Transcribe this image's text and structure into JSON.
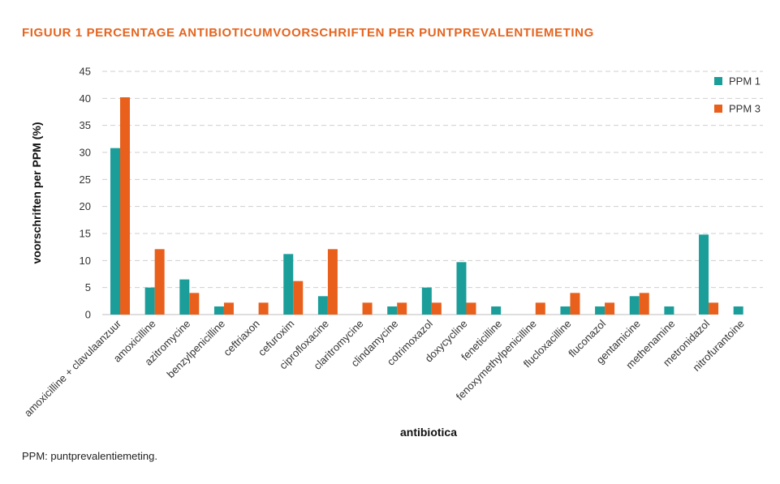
{
  "title": "FIGUUR 1  PERCENTAGE ANTIBIOTICUMVOORSCHRIFTEN PER PUNTPREVALENTIEMETING",
  "footnote": "PPM: puntprevalentiemeting.",
  "colors": {
    "title": "#e5641e",
    "ppm1": "#1b9e9a",
    "ppm3": "#e8601c",
    "grid": "#cfcfcf"
  },
  "chart_data": {
    "type": "bar",
    "xlabel": "antibiotica",
    "ylabel": "voorschriften per PPM (%)",
    "ylim": [
      0,
      45
    ],
    "yticks": [
      0,
      5,
      10,
      15,
      20,
      25,
      30,
      35,
      40,
      45
    ],
    "grid": true,
    "legend_position": "top-right",
    "categories": [
      "amoxicilline + clavulaanzuur",
      "amoxicilline",
      "azitromycine",
      "benzylpenicilline",
      "ceftriaxon",
      "cefuroxim",
      "ciprofloxacine",
      "claritromycine",
      "clindamycine",
      "cotrimoxazol",
      "doxycycline",
      "feneticilline",
      "fenoxymethylpenicilline",
      "flucloxacilline",
      "fluconazol",
      "gentamicine",
      "methenamine",
      "metronidazol",
      "nitrofurantoine"
    ],
    "series": [
      {
        "name": "PPM 1",
        "color": "#1b9e9a",
        "values": [
          30.8,
          5.0,
          6.5,
          1.5,
          0,
          11.2,
          3.4,
          0,
          1.5,
          5.0,
          9.7,
          1.5,
          0,
          1.5,
          1.5,
          3.4,
          1.5,
          14.8,
          1.5
        ]
      },
      {
        "name": "PPM 3",
        "color": "#e8601c",
        "values": [
          40.2,
          12.1,
          4.0,
          2.2,
          2.2,
          6.2,
          12.1,
          2.2,
          2.2,
          2.2,
          2.2,
          0,
          2.2,
          4.0,
          2.2,
          4.0,
          0,
          2.2,
          0
        ]
      }
    ]
  }
}
